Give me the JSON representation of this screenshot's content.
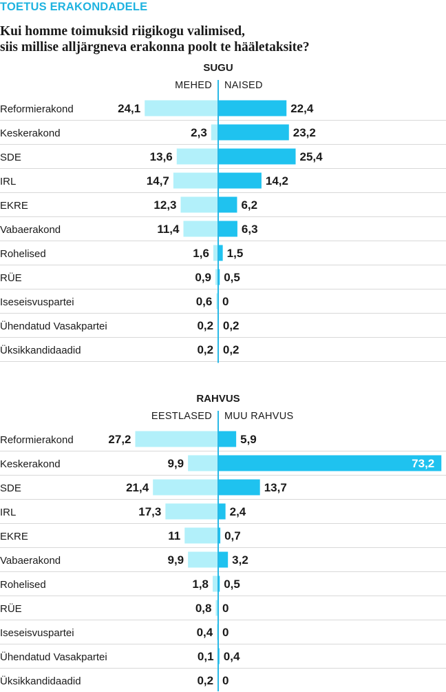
{
  "header": {
    "kicker": "TOETUS ERAKONDADELE",
    "question_line1": "Kui homme toimuksid riigikogu valimised,",
    "question_line2": "siis millise alljärgneva erakonna poolt te hääletaksite?"
  },
  "colors": {
    "left_bar": "#b2f0fa",
    "right_bar": "#1fc2ef",
    "axis": "#29b8e6",
    "separator": "#d8d8d8",
    "kicker": "#1fb3e0"
  },
  "chart_data": [
    {
      "type": "bar",
      "title": "SUGU",
      "categories": [
        "Reformierakond",
        "Keskerakond",
        "SDE",
        "IRL",
        "EKRE",
        "Vabaerakond",
        "Rohelised",
        "RÜE",
        "Iseseisvuspartei",
        "Ühendatud Vasakpartei",
        "Üksikkandidaadid"
      ],
      "series": [
        {
          "name": "MEHED",
          "side": "left",
          "values": [
            24.1,
            2.3,
            13.6,
            14.7,
            12.3,
            11.4,
            1.6,
            0.9,
            0.6,
            0.2,
            0.2
          ],
          "labels": [
            "24,1",
            "2,3",
            "13,6",
            "14,7",
            "12,3",
            "11,4",
            "1,6",
            "0,9",
            "0,6",
            "0,2",
            "0,2"
          ]
        },
        {
          "name": "NAISED",
          "side": "right",
          "values": [
            22.4,
            23.2,
            25.4,
            14.2,
            6.2,
            6.3,
            1.5,
            0.5,
            0,
            0.2,
            0.2
          ],
          "labels": [
            "22,4",
            "23,2",
            "25,4",
            "14,2",
            "6,2",
            "6,3",
            "1,5",
            "0,5",
            "0",
            "0,2",
            "0,2"
          ]
        }
      ],
      "grid": false
    },
    {
      "type": "bar",
      "title": "RAHVUS",
      "categories": [
        "Reformierakond",
        "Keskerakond",
        "SDE",
        "IRL",
        "EKRE",
        "Vabaerakond",
        "Rohelised",
        "RÜE",
        "Iseseisvuspartei",
        "Ühendatud Vasakpartei",
        "Üksikkandidaadid"
      ],
      "series": [
        {
          "name": "EESTLASED",
          "side": "left",
          "values": [
            27.2,
            9.9,
            21.4,
            17.3,
            11,
            9.9,
            1.8,
            0.8,
            0.4,
            0.1,
            0.2
          ],
          "labels": [
            "27,2",
            "9,9",
            "21,4",
            "17,3",
            "11",
            "9,9",
            "1,8",
            "0,8",
            "0,4",
            "0,1",
            "0,2"
          ]
        },
        {
          "name": "MUU RAHVUS",
          "side": "right",
          "values": [
            5.9,
            73.2,
            13.7,
            2.4,
            0.7,
            3.2,
            0.5,
            0,
            0,
            0.4,
            0
          ],
          "labels": [
            "5,9",
            "73,2",
            "13,7",
            "2,4",
            "0,7",
            "3,2",
            "0,5",
            "0",
            "0",
            "0,4",
            "0"
          ]
        }
      ],
      "grid": false
    }
  ]
}
